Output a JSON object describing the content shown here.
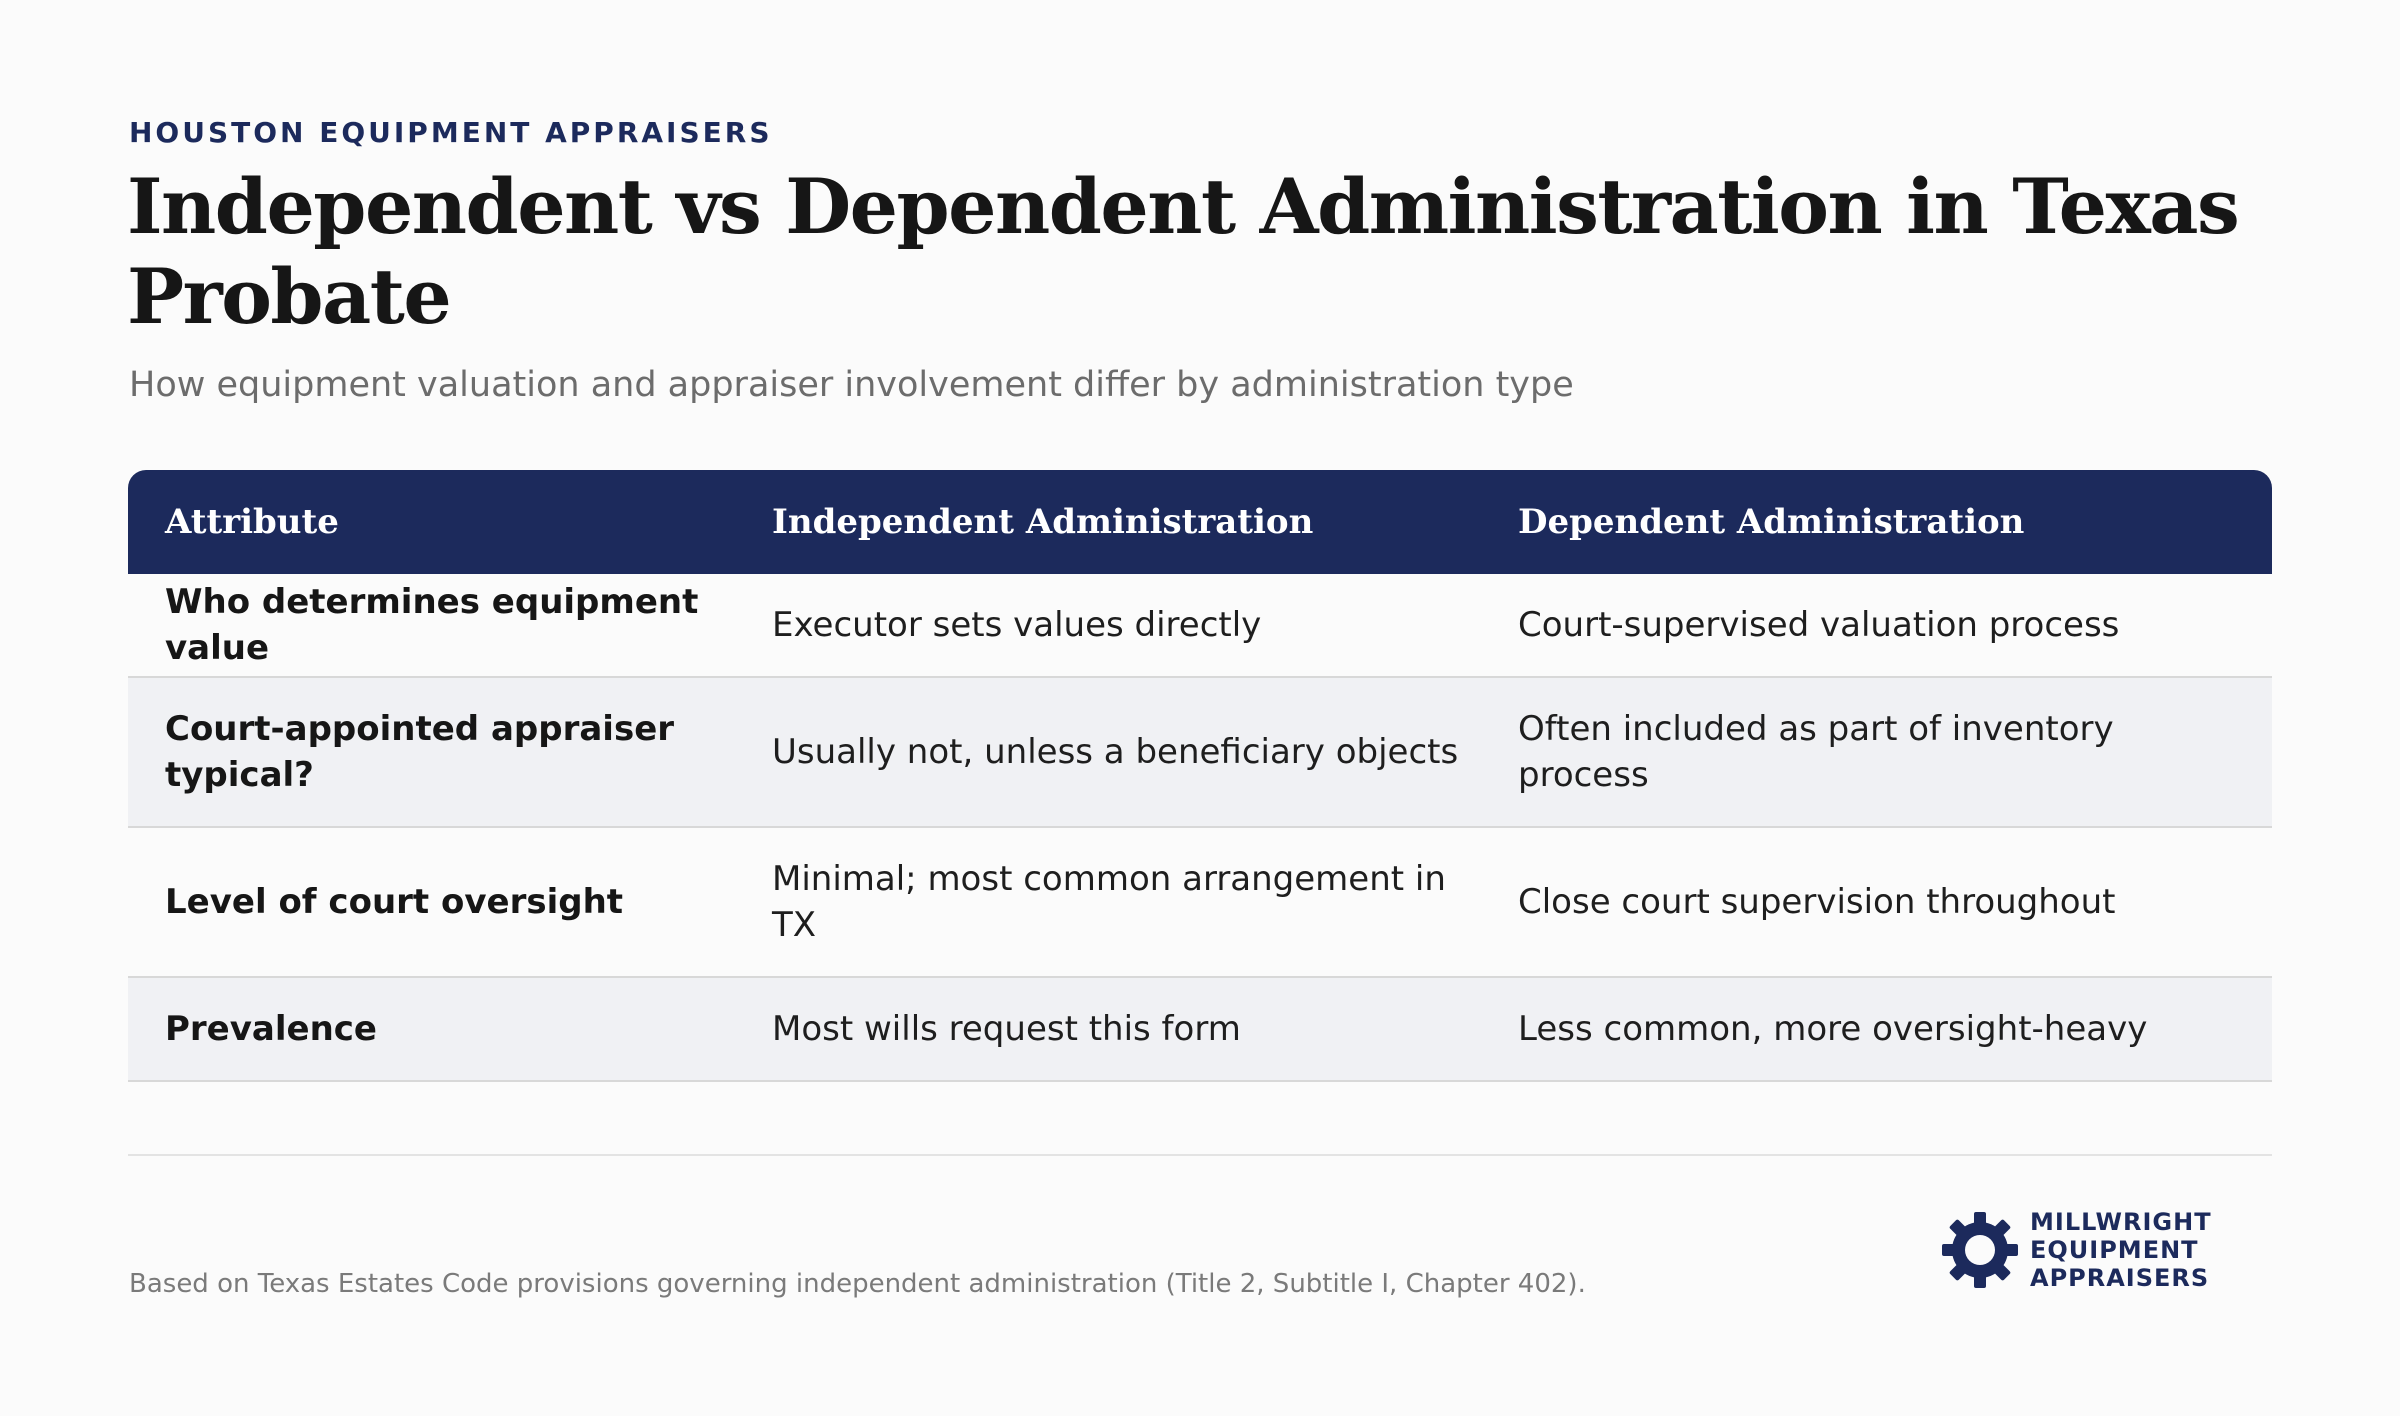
{
  "header": {
    "eyebrow": "HOUSTON EQUIPMENT APPRAISERS",
    "title": "Independent vs Dependent Administration in Texas Probate",
    "subtitle": "How equipment valuation and appraiser involvement differ by administration type"
  },
  "table": {
    "columns": [
      "Attribute",
      "Independent Administration",
      "Dependent Administration"
    ],
    "rows": [
      {
        "attribute": "Who determines equipment value",
        "independent": "Executor sets values directly",
        "dependent": "Court-supervised valuation process"
      },
      {
        "attribute": "Court-appointed appraiser typical?",
        "independent": "Usually not, unless a beneficiary objects",
        "dependent": "Often included as part of inventory process"
      },
      {
        "attribute": "Level of court oversight",
        "independent": "Minimal; most common arrangement in TX",
        "dependent": "Close court supervision throughout"
      },
      {
        "attribute": "Prevalence",
        "independent": "Most wills request this form",
        "dependent": "Less common, more oversight-heavy"
      }
    ]
  },
  "footer": {
    "footnote": "Based on Texas Estates Code provisions governing independent administration (Title 2, Subtitle I, Chapter 402).",
    "logo": {
      "icon": "gear-icon",
      "line1": "MILLWRIGHT",
      "line2": "EQUIPMENT",
      "line3": "APPRAISERS"
    }
  },
  "colors": {
    "brand_navy": "#1c2a5c",
    "row_alt": "#f0f1f4",
    "background": "#fbfbfb"
  }
}
